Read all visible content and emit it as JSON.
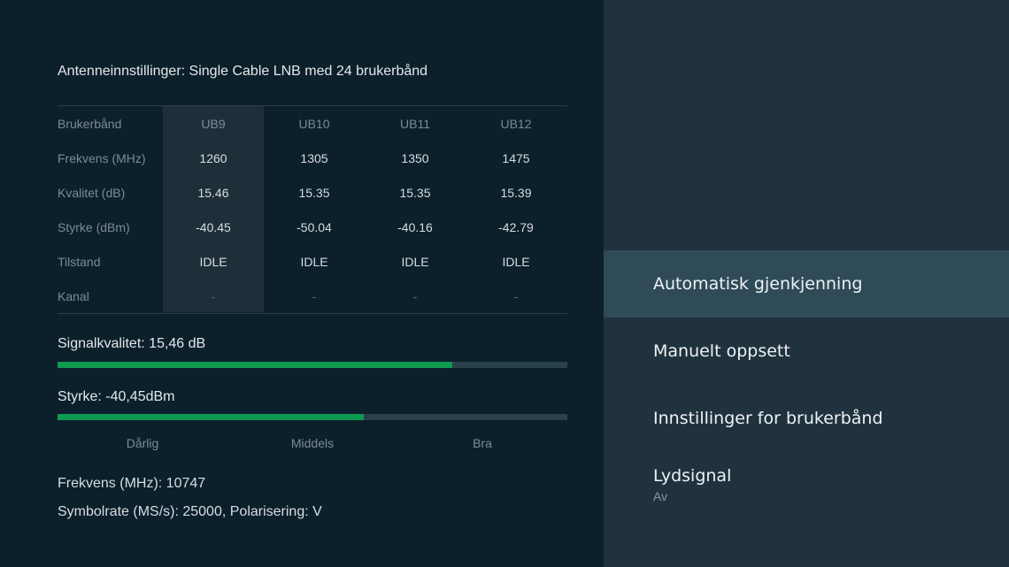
{
  "antenna_title": "Antenneinnstillinger: Single Cable LNB med 24 brukerbånd",
  "table": {
    "columns": [
      "UB9",
      "UB10",
      "UB11",
      "UB12"
    ],
    "rows": [
      {
        "label": "Frekvens (MHz)",
        "values": [
          "1260",
          "1305",
          "1350",
          "1475"
        ]
      },
      {
        "label": "Kvalitet (dB)",
        "values": [
          "15.46",
          "15.35",
          "15.35",
          "15.39"
        ]
      },
      {
        "label": "Styrke (dBm)",
        "values": [
          "-40.45",
          "-50.04",
          "-40.16",
          "-42.79"
        ]
      },
      {
        "label": "Tilstand",
        "values": [
          "IDLE",
          "IDLE",
          "IDLE",
          "IDLE"
        ]
      },
      {
        "label": "Kanal",
        "values": [
          "-",
          "-",
          "-",
          "-"
        ]
      }
    ],
    "header_label": "Brukerbånd",
    "selected_column": "UB9"
  },
  "signal_quality": {
    "label": "Signalkvalitet: 15,46 dB",
    "level": 0.774
  },
  "strength": {
    "label": "Styrke: -40,45dBm",
    "level": 0.6
  },
  "scale": [
    "Dårlig",
    "Middels",
    "Bra"
  ],
  "info": {
    "frequency": "Frekvens (MHz): 10747",
    "symbolrate": "Symbolrate (MS/s): 25000, Polarisering: V"
  },
  "menu": [
    {
      "label": "Automatisk gjenkjenning",
      "selected": true
    },
    {
      "label": "Manuelt oppsett"
    },
    {
      "label": "Innstillinger for brukerbånd"
    },
    {
      "label": "Lydsignal",
      "sub": "Av"
    }
  ],
  "colors": {
    "bar_fill": "#0f9a52",
    "bar_track": "#29404d",
    "selected_item": "#2f4b58"
  }
}
